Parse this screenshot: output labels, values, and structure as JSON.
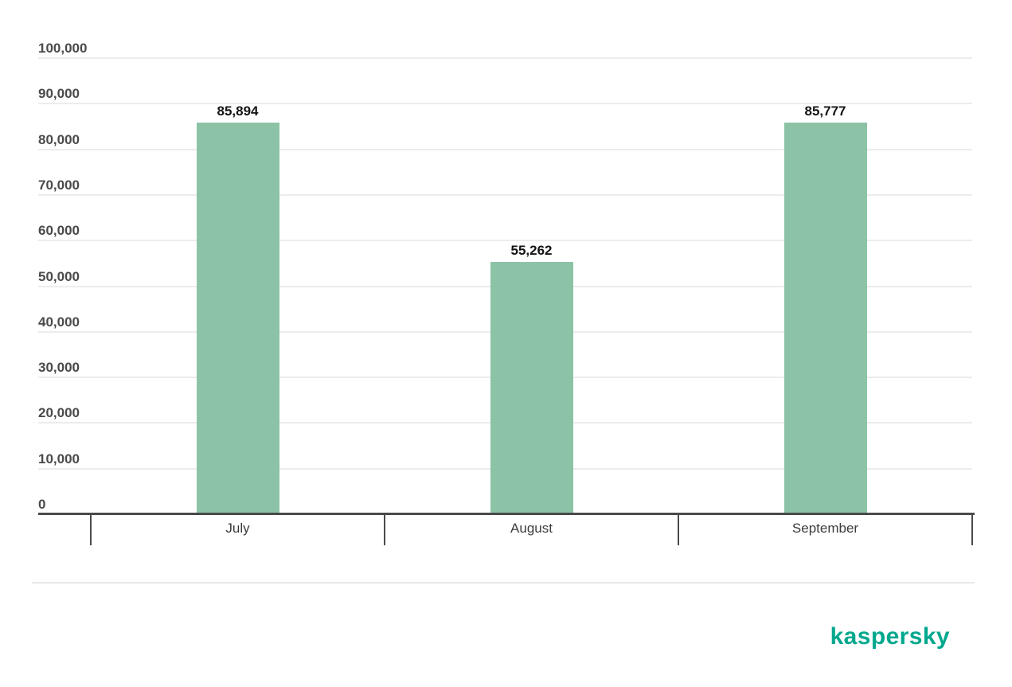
{
  "chart_data": {
    "type": "bar",
    "title": "",
    "xlabel": "",
    "ylabel": "",
    "categories": [
      "July",
      "August",
      "September"
    ],
    "values": [
      85894,
      55262,
      85777
    ],
    "value_labels": [
      "85,894",
      "55,262",
      "85,777"
    ],
    "ylim": [
      0,
      100000
    ],
    "yticks": [
      0,
      10000,
      20000,
      30000,
      40000,
      50000,
      60000,
      70000,
      80000,
      90000,
      100000
    ],
    "ytick_labels": [
      "0",
      "10,000",
      "20,000",
      "30,000",
      "40,000",
      "50,000",
      "60,000",
      "70,000",
      "80,000",
      "90,000",
      "100,000"
    ],
    "grid": "horizontal",
    "legend": "none",
    "bar_color": "#8cc3a7",
    "axis_color": "#4a4a4a",
    "gridline_color": "#ececec",
    "tick_label_color": "#4a4a4a",
    "value_label_color": "#141414",
    "category_label_color": "#3c3c3c"
  },
  "footer": {
    "divider_color": "#e8e8e8",
    "logo_text": "kaspersky",
    "logo_color": "#00a88e"
  }
}
